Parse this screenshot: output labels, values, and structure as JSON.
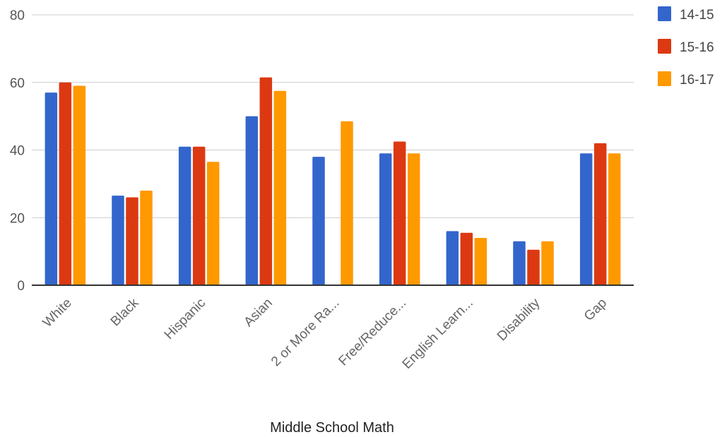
{
  "chart_data": {
    "type": "bar",
    "xlabel": "Middle School Math",
    "ylabel": "",
    "ylim": [
      0,
      80
    ],
    "yticks": [
      0,
      20,
      40,
      60,
      80
    ],
    "grid": true,
    "legend_position": "top-right",
    "categories": [
      "White",
      "Black",
      "Hispanic",
      "Asian",
      "2 or More Ra...",
      "Free/Reduce...",
      "English Learn...",
      "Disability",
      "Gap"
    ],
    "series": [
      {
        "name": "14-15",
        "color": "#3366cc",
        "values": [
          57,
          26.5,
          41,
          50,
          38,
          39,
          16,
          13,
          39
        ]
      },
      {
        "name": "15-16",
        "color": "#dc3912",
        "values": [
          60,
          26,
          41,
          61.5,
          null,
          42.5,
          15.5,
          10.5,
          42
        ]
      },
      {
        "name": "16-17",
        "color": "#ff9900",
        "values": [
          59,
          28,
          36.5,
          57.5,
          48.5,
          39,
          14,
          13,
          39
        ]
      }
    ]
  }
}
